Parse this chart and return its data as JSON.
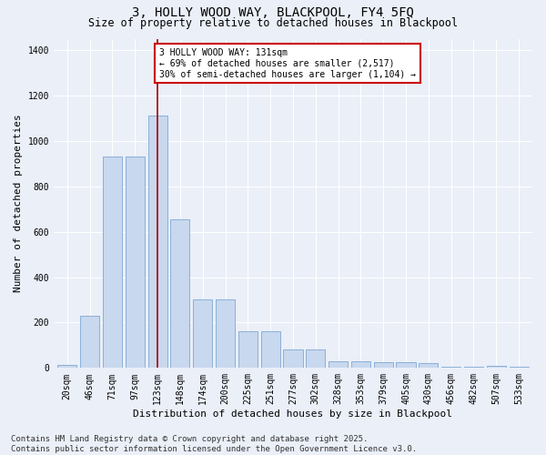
{
  "title": "3, HOLLY WOOD WAY, BLACKPOOL, FY4 5FQ",
  "subtitle": "Size of property relative to detached houses in Blackpool",
  "xlabel": "Distribution of detached houses by size in Blackpool",
  "ylabel": "Number of detached properties",
  "categories": [
    "20sqm",
    "46sqm",
    "71sqm",
    "97sqm",
    "123sqm",
    "148sqm",
    "174sqm",
    "200sqm",
    "225sqm",
    "251sqm",
    "277sqm",
    "302sqm",
    "328sqm",
    "353sqm",
    "379sqm",
    "405sqm",
    "430sqm",
    "456sqm",
    "482sqm",
    "507sqm",
    "533sqm"
  ],
  "values": [
    15,
    230,
    930,
    930,
    1110,
    655,
    300,
    300,
    160,
    160,
    80,
    80,
    30,
    30,
    25,
    25,
    20,
    5,
    5,
    10,
    5
  ],
  "bar_color": "#c8d8ee",
  "bar_edge_color": "#8ab0d8",
  "bg_color": "#eaeff8",
  "grid_color": "#ffffff",
  "vline_x_idx": 4,
  "vline_color": "#aa0000",
  "annotation_box_text": "3 HOLLY WOOD WAY: 131sqm\n← 69% of detached houses are smaller (2,517)\n30% of semi-detached houses are larger (1,104) →",
  "annotation_box_color": "#cc0000",
  "footer": "Contains HM Land Registry data © Crown copyright and database right 2025.\nContains public sector information licensed under the Open Government Licence v3.0.",
  "ylim": [
    0,
    1450
  ],
  "yticks": [
    0,
    200,
    400,
    600,
    800,
    1000,
    1200,
    1400
  ],
  "title_fontsize": 10,
  "subtitle_fontsize": 8.5,
  "xlabel_fontsize": 8,
  "ylabel_fontsize": 8,
  "tick_fontsize": 7,
  "footer_fontsize": 6.5,
  "ann_fontsize": 7
}
